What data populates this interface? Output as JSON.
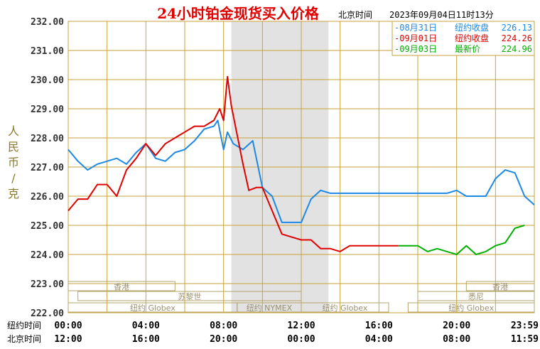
{
  "chart_data": {
    "type": "line",
    "title": "24小时铂金现货买入价格",
    "subtitle_location": "北京时间",
    "subtitle_datetime": "2023年09月04日11时13分",
    "ylabel": "人民币/克",
    "ylim": [
      222.0,
      232.0
    ],
    "y_ticks": [
      "232.00",
      "231.00",
      "230.00",
      "229.00",
      "228.00",
      "227.00",
      "226.00",
      "225.00",
      "224.00",
      "223.00",
      "222.00"
    ],
    "x_row_labels": [
      "纽约时间",
      "北京时间"
    ],
    "x_ticks_newyork": [
      "00:00",
      "04:00",
      "08:00",
      "12:00",
      "16:00",
      "20:00",
      "23:59"
    ],
    "x_ticks_beijing": [
      "12:00",
      "16:00",
      "20:00",
      "00:00",
      "04:00",
      "08:00",
      "11:59"
    ],
    "grid": true,
    "legend": [
      {
        "label": "-08月31日",
        "kind": "纽约收盘",
        "value": "226.13",
        "color": "#1e88e5"
      },
      {
        "label": "-09月01日",
        "kind": "纽约收盘",
        "value": "224.26",
        "color": "#e00000"
      },
      {
        "label": "-09月03日",
        "kind": "最新价",
        "value": "224.96",
        "color": "#00b000"
      }
    ],
    "sessions": [
      {
        "label": "香港",
        "row": 1
      },
      {
        "label": "苏黎世",
        "row": 2
      },
      {
        "label": "纽约 Globex",
        "row": 3
      },
      {
        "label": "纽约 NYMEX",
        "row": 3
      },
      {
        "label": "纽约 Globex",
        "row": 3
      },
      {
        "label": "香港",
        "row": 1
      },
      {
        "label": "悉尼",
        "row": 2
      },
      {
        "label": "纽约 Globex",
        "row": 3
      }
    ],
    "series": [
      {
        "color": "#1e88e5",
        "x": [
          0,
          0.5,
          1,
          1.5,
          2,
          2.5,
          3,
          3.5,
          4,
          4.5,
          5,
          5.5,
          6,
          6.5,
          7,
          7.5,
          7.7,
          8,
          8.2,
          8.5,
          9,
          9.5,
          10,
          10.5,
          11,
          11.5,
          12,
          12.5,
          13,
          13.5,
          14,
          14.5,
          15,
          15.5,
          16,
          16.5,
          17,
          17.5,
          18,
          18.5,
          19,
          19.5,
          20,
          20.5,
          21,
          21.5,
          22,
          22.5,
          23,
          23.5,
          24
        ],
        "y": [
          227.6,
          227.2,
          226.9,
          227.1,
          227.2,
          227.3,
          227.1,
          227.5,
          227.8,
          227.3,
          227.2,
          227.5,
          227.6,
          227.9,
          228.3,
          228.4,
          228.6,
          227.6,
          228.2,
          227.8,
          227.6,
          227.9,
          226.3,
          226.0,
          225.1,
          225.1,
          225.1,
          225.9,
          226.2,
          226.1,
          226.1,
          226.1,
          226.1,
          226.1,
          226.1,
          226.1,
          226.1,
          226.1,
          226.1,
          226.1,
          226.1,
          226.1,
          226.2,
          226.0,
          226.0,
          226.0,
          226.6,
          226.9,
          226.8,
          226.0,
          225.7
        ]
      },
      {
        "color": "#e00000",
        "x": [
          0,
          0.5,
          1,
          1.5,
          2,
          2.5,
          3,
          3.5,
          4,
          4.5,
          5,
          5.5,
          6,
          6.5,
          7,
          7.5,
          7.8,
          8,
          8.2,
          8.4,
          8.7,
          9,
          9.3,
          9.7,
          10,
          10.5,
          11,
          11.5,
          12,
          12.5,
          13,
          13.5,
          14,
          14.5,
          15,
          15.5,
          16,
          16.5,
          17
        ],
        "y": [
          225.5,
          225.9,
          225.9,
          226.4,
          226.4,
          226.0,
          226.9,
          227.3,
          227.8,
          227.4,
          227.8,
          228.0,
          228.2,
          228.4,
          228.4,
          228.6,
          229.0,
          228.6,
          230.1,
          229.1,
          228.1,
          227.1,
          226.2,
          226.3,
          226.3,
          225.5,
          224.7,
          224.6,
          224.5,
          224.5,
          224.2,
          224.2,
          224.1,
          224.3,
          224.3,
          224.3,
          224.3,
          224.3,
          224.3
        ]
      },
      {
        "color": "#00b000",
        "x": [
          17,
          17.5,
          18,
          18.5,
          19,
          19.5,
          20,
          20.5,
          21,
          21.5,
          22,
          22.5,
          23,
          23.5
        ],
        "y": [
          224.3,
          224.3,
          224.3,
          224.1,
          224.2,
          224.1,
          224.0,
          224.3,
          224.0,
          224.1,
          224.3,
          224.4,
          224.9,
          225.0
        ]
      }
    ]
  }
}
